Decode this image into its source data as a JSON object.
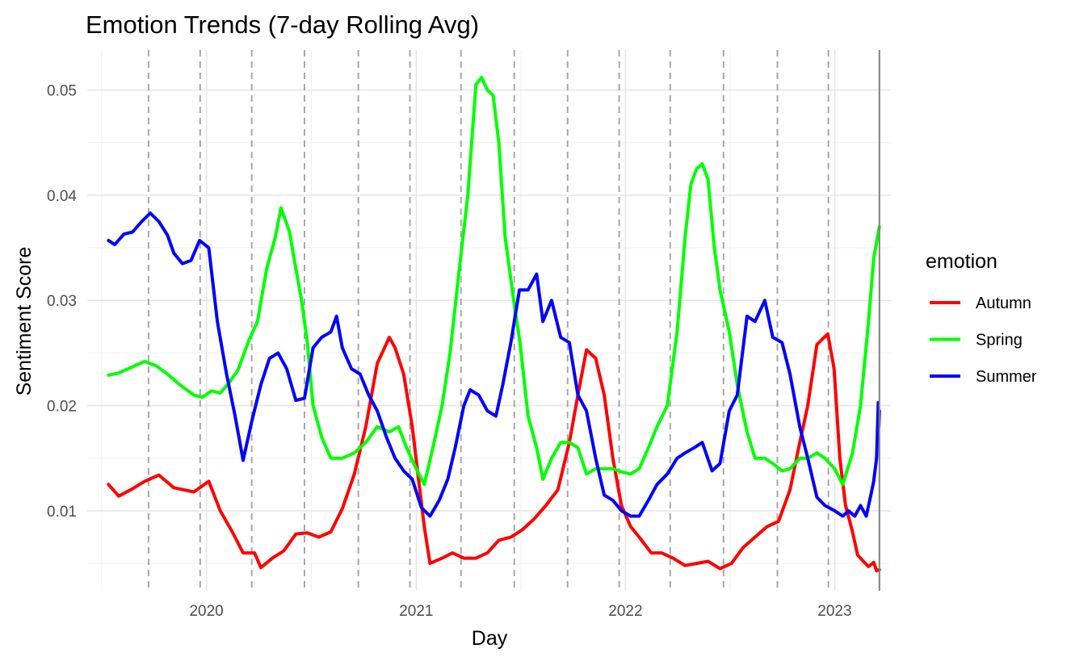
{
  "chart_data": {
    "type": "line",
    "title": "Emotion Trends (7-day Rolling Avg)",
    "xlabel": "Day",
    "ylabel": "Sentiment Score",
    "x_ticks": [
      "2020",
      "2021",
      "2022",
      "2023"
    ],
    "y_ticks": [
      "0.01",
      "0.02",
      "0.03",
      "0.04",
      "0.05"
    ],
    "ylim": [
      0.0024,
      0.0538
    ],
    "xlim": [
      "2019-06-07",
      "2023-04-09"
    ],
    "grid": true,
    "legend_title": "emotion",
    "legend_position": "right",
    "season_boundaries": [
      "2019-09-22",
      "2019-12-21",
      "2020-03-20",
      "2020-06-20",
      "2020-09-22",
      "2020-12-21",
      "2021-03-20",
      "2021-06-21",
      "2021-09-22",
      "2021-12-21",
      "2022-03-20",
      "2022-06-21",
      "2022-09-23",
      "2022-12-21"
    ],
    "end_line": "2023-03-20",
    "series": [
      {
        "name": "Autumn",
        "color": "#ff0000",
        "points": [
          [
            "2019-07-14",
            0.0125
          ],
          [
            "2019-08-01",
            0.0114
          ],
          [
            "2019-08-25",
            0.0121
          ],
          [
            "2019-09-15",
            0.0128
          ],
          [
            "2019-10-10",
            0.0134
          ],
          [
            "2019-11-05",
            0.0122
          ],
          [
            "2019-12-10",
            0.0118
          ],
          [
            "2020-01-05",
            0.0128
          ],
          [
            "2020-01-25",
            0.01
          ],
          [
            "2020-02-15",
            0.008
          ],
          [
            "2020-03-05",
            0.006
          ],
          [
            "2020-03-25",
            0.006
          ],
          [
            "2020-04-05",
            0.0046
          ],
          [
            "2020-04-25",
            0.0055
          ],
          [
            "2020-05-15",
            0.0062
          ],
          [
            "2020-06-05",
            0.0078
          ],
          [
            "2020-06-25",
            0.0079
          ],
          [
            "2020-07-15",
            0.0075
          ],
          [
            "2020-08-05",
            0.008
          ],
          [
            "2020-08-25",
            0.0102
          ],
          [
            "2020-09-15",
            0.0135
          ],
          [
            "2020-10-05",
            0.018
          ],
          [
            "2020-10-25",
            0.024
          ],
          [
            "2020-11-15",
            0.0265
          ],
          [
            "2020-11-25",
            0.0255
          ],
          [
            "2020-12-10",
            0.023
          ],
          [
            "2020-12-25",
            0.018
          ],
          [
            "2021-01-05",
            0.013
          ],
          [
            "2021-01-15",
            0.0085
          ],
          [
            "2021-01-25",
            0.005
          ],
          [
            "2021-02-15",
            0.0055
          ],
          [
            "2021-03-05",
            0.006
          ],
          [
            "2021-03-25",
            0.0055
          ],
          [
            "2021-04-15",
            0.0055
          ],
          [
            "2021-05-05",
            0.006
          ],
          [
            "2021-05-25",
            0.0072
          ],
          [
            "2021-06-15",
            0.0075
          ],
          [
            "2021-07-05",
            0.0082
          ],
          [
            "2021-07-25",
            0.0092
          ],
          [
            "2021-08-15",
            0.0105
          ],
          [
            "2021-09-05",
            0.012
          ],
          [
            "2021-09-25",
            0.0165
          ],
          [
            "2021-10-10",
            0.021
          ],
          [
            "2021-10-25",
            0.0253
          ],
          [
            "2021-11-10",
            0.0245
          ],
          [
            "2021-11-25",
            0.021
          ],
          [
            "2021-12-10",
            0.015
          ],
          [
            "2021-12-25",
            0.0105
          ],
          [
            "2022-01-10",
            0.0085
          ],
          [
            "2022-01-25",
            0.0075
          ],
          [
            "2022-02-15",
            0.006
          ],
          [
            "2022-03-05",
            0.006
          ],
          [
            "2022-03-25",
            0.0055
          ],
          [
            "2022-04-15",
            0.0048
          ],
          [
            "2022-05-05",
            0.005
          ],
          [
            "2022-05-25",
            0.0052
          ],
          [
            "2022-06-15",
            0.0045
          ],
          [
            "2022-07-05",
            0.005
          ],
          [
            "2022-07-25",
            0.0065
          ],
          [
            "2022-08-15",
            0.0075
          ],
          [
            "2022-09-05",
            0.0085
          ],
          [
            "2022-09-25",
            0.009
          ],
          [
            "2022-10-15",
            0.012
          ],
          [
            "2022-11-01",
            0.0165
          ],
          [
            "2022-11-15",
            0.02
          ],
          [
            "2022-12-01",
            0.0258
          ],
          [
            "2022-12-10",
            0.0263
          ],
          [
            "2022-12-20",
            0.0268
          ],
          [
            "2022-12-31",
            0.0235
          ],
          [
            "2023-01-10",
            0.015
          ],
          [
            "2023-01-20",
            0.0105
          ],
          [
            "2023-02-01",
            0.008
          ],
          [
            "2023-02-10",
            0.0058
          ],
          [
            "2023-02-20",
            0.0052
          ],
          [
            "2023-03-01",
            0.0047
          ],
          [
            "2023-03-10",
            0.0051
          ],
          [
            "2023-03-15",
            0.0043
          ],
          [
            "2023-03-20",
            0.0044
          ]
        ]
      },
      {
        "name": "Spring",
        "color": "#00ff00",
        "points": [
          [
            "2019-07-14",
            0.0229
          ],
          [
            "2019-08-01",
            0.0231
          ],
          [
            "2019-08-25",
            0.0237
          ],
          [
            "2019-09-15",
            0.0242
          ],
          [
            "2019-10-05",
            0.0238
          ],
          [
            "2019-10-25",
            0.023
          ],
          [
            "2019-11-15",
            0.022
          ],
          [
            "2019-12-10",
            0.021
          ],
          [
            "2019-12-25",
            0.0208
          ],
          [
            "2020-01-10",
            0.0214
          ],
          [
            "2020-01-25",
            0.0212
          ],
          [
            "2020-02-10",
            0.0222
          ],
          [
            "2020-02-25",
            0.0234
          ],
          [
            "2020-03-15",
            0.0262
          ],
          [
            "2020-03-30",
            0.028
          ],
          [
            "2020-04-15",
            0.033
          ],
          [
            "2020-04-30",
            0.036
          ],
          [
            "2020-05-10",
            0.0388
          ],
          [
            "2020-05-25",
            0.0365
          ],
          [
            "2020-06-05",
            0.033
          ],
          [
            "2020-06-15",
            0.03
          ],
          [
            "2020-06-25",
            0.026
          ],
          [
            "2020-07-05",
            0.02
          ],
          [
            "2020-07-20",
            0.017
          ],
          [
            "2020-08-05",
            0.015
          ],
          [
            "2020-08-25",
            0.015
          ],
          [
            "2020-09-15",
            0.0155
          ],
          [
            "2020-10-05",
            0.0165
          ],
          [
            "2020-10-25",
            0.018
          ],
          [
            "2020-11-15",
            0.0175
          ],
          [
            "2020-12-01",
            0.018
          ],
          [
            "2020-12-15",
            0.016
          ],
          [
            "2021-01-01",
            0.014
          ],
          [
            "2021-01-15",
            0.0125
          ],
          [
            "2021-02-01",
            0.0165
          ],
          [
            "2021-02-15",
            0.02
          ],
          [
            "2021-03-01",
            0.025
          ],
          [
            "2021-03-15",
            0.032
          ],
          [
            "2021-04-01",
            0.04
          ],
          [
            "2021-04-15",
            0.0505
          ],
          [
            "2021-04-25",
            0.0512
          ],
          [
            "2021-05-05",
            0.05
          ],
          [
            "2021-05-15",
            0.0495
          ],
          [
            "2021-05-25",
            0.045
          ],
          [
            "2021-06-05",
            0.036
          ],
          [
            "2021-06-20",
            0.03
          ],
          [
            "2021-07-01",
            0.026
          ],
          [
            "2021-07-15",
            0.019
          ],
          [
            "2021-07-30",
            0.016
          ],
          [
            "2021-08-10",
            0.013
          ],
          [
            "2021-08-25",
            0.015
          ],
          [
            "2021-09-10",
            0.0165
          ],
          [
            "2021-09-25",
            0.0165
          ],
          [
            "2021-10-10",
            0.016
          ],
          [
            "2021-10-25",
            0.0135
          ],
          [
            "2021-11-10",
            0.014
          ],
          [
            "2021-11-25",
            0.014
          ],
          [
            "2021-12-10",
            0.014
          ],
          [
            "2021-12-25",
            0.0137
          ],
          [
            "2022-01-10",
            0.0135
          ],
          [
            "2022-01-25",
            0.014
          ],
          [
            "2022-02-10",
            0.016
          ],
          [
            "2022-02-25",
            0.018
          ],
          [
            "2022-03-15",
            0.02
          ],
          [
            "2022-04-01",
            0.027
          ],
          [
            "2022-04-15",
            0.036
          ],
          [
            "2022-04-25",
            0.041
          ],
          [
            "2022-05-05",
            0.0425
          ],
          [
            "2022-05-15",
            0.043
          ],
          [
            "2022-05-25",
            0.0415
          ],
          [
            "2022-06-05",
            0.035
          ],
          [
            "2022-06-15",
            0.031
          ],
          [
            "2022-07-01",
            0.027
          ],
          [
            "2022-07-15",
            0.022
          ],
          [
            "2022-08-01",
            0.0175
          ],
          [
            "2022-08-15",
            0.015
          ],
          [
            "2022-09-01",
            0.015
          ],
          [
            "2022-09-15",
            0.0145
          ],
          [
            "2022-10-01",
            0.0138
          ],
          [
            "2022-10-15",
            0.014
          ],
          [
            "2022-11-01",
            0.015
          ],
          [
            "2022-11-15",
            0.015
          ],
          [
            "2022-12-01",
            0.0155
          ],
          [
            "2022-12-15",
            0.015
          ],
          [
            "2023-01-01",
            0.014
          ],
          [
            "2023-01-15",
            0.0125
          ],
          [
            "2023-02-01",
            0.0155
          ],
          [
            "2023-02-15",
            0.02
          ],
          [
            "2023-03-01",
            0.028
          ],
          [
            "2023-03-10",
            0.034
          ],
          [
            "2023-03-20",
            0.037
          ]
        ]
      },
      {
        "name": "Summer",
        "color": "#0000ff",
        "points": [
          [
            "2019-07-14",
            0.0357
          ],
          [
            "2019-07-25",
            0.0353
          ],
          [
            "2019-08-10",
            0.0363
          ],
          [
            "2019-08-25",
            0.0365
          ],
          [
            "2019-09-10",
            0.0375
          ],
          [
            "2019-09-25",
            0.0383
          ],
          [
            "2019-10-10",
            0.0375
          ],
          [
            "2019-10-25",
            0.0362
          ],
          [
            "2019-11-05",
            0.0345
          ],
          [
            "2019-11-20",
            0.0335
          ],
          [
            "2019-12-05",
            0.0338
          ],
          [
            "2019-12-20",
            0.0357
          ],
          [
            "2020-01-05",
            0.035
          ],
          [
            "2020-01-20",
            0.028
          ],
          [
            "2020-02-05",
            0.023
          ],
          [
            "2020-02-20",
            0.019
          ],
          [
            "2020-03-05",
            0.0148
          ],
          [
            "2020-03-20",
            0.0185
          ],
          [
            "2020-04-05",
            0.022
          ],
          [
            "2020-04-20",
            0.0245
          ],
          [
            "2020-05-05",
            0.025
          ],
          [
            "2020-05-20",
            0.0235
          ],
          [
            "2020-06-05",
            0.0205
          ],
          [
            "2020-06-20",
            0.0207
          ],
          [
            "2020-07-05",
            0.0255
          ],
          [
            "2020-07-20",
            0.0265
          ],
          [
            "2020-08-05",
            0.027
          ],
          [
            "2020-08-15",
            0.0285
          ],
          [
            "2020-08-25",
            0.0255
          ],
          [
            "2020-09-10",
            0.0235
          ],
          [
            "2020-09-25",
            0.023
          ],
          [
            "2020-10-10",
            0.021
          ],
          [
            "2020-10-25",
            0.0195
          ],
          [
            "2020-11-10",
            0.017
          ],
          [
            "2020-11-25",
            0.015
          ],
          [
            "2020-12-10",
            0.0138
          ],
          [
            "2020-12-25",
            0.013
          ],
          [
            "2021-01-10",
            0.0103
          ],
          [
            "2021-01-25",
            0.0095
          ],
          [
            "2021-02-10",
            0.011
          ],
          [
            "2021-02-25",
            0.013
          ],
          [
            "2021-03-10",
            0.016
          ],
          [
            "2021-03-25",
            0.02
          ],
          [
            "2021-04-05",
            0.0215
          ],
          [
            "2021-04-20",
            0.021
          ],
          [
            "2021-05-05",
            0.0195
          ],
          [
            "2021-05-20",
            0.019
          ],
          [
            "2021-06-01",
            0.022
          ],
          [
            "2021-06-15",
            0.026
          ],
          [
            "2021-06-30",
            0.031
          ],
          [
            "2021-07-15",
            0.031
          ],
          [
            "2021-07-30",
            0.0325
          ],
          [
            "2021-08-10",
            0.028
          ],
          [
            "2021-08-25",
            0.03
          ],
          [
            "2021-09-10",
            0.0265
          ],
          [
            "2021-09-25",
            0.026
          ],
          [
            "2021-10-10",
            0.021
          ],
          [
            "2021-10-25",
            0.0195
          ],
          [
            "2021-11-10",
            0.015
          ],
          [
            "2021-11-25",
            0.0115
          ],
          [
            "2021-12-10",
            0.011
          ],
          [
            "2021-12-25",
            0.01
          ],
          [
            "2022-01-10",
            0.0095
          ],
          [
            "2022-01-25",
            0.0095
          ],
          [
            "2022-02-10",
            0.011
          ],
          [
            "2022-02-25",
            0.0125
          ],
          [
            "2022-03-15",
            0.0135
          ],
          [
            "2022-04-01",
            0.015
          ],
          [
            "2022-04-15",
            0.0155
          ],
          [
            "2022-05-01",
            0.016
          ],
          [
            "2022-05-15",
            0.0165
          ],
          [
            "2022-06-01",
            0.0138
          ],
          [
            "2022-06-15",
            0.0145
          ],
          [
            "2022-07-01",
            0.0195
          ],
          [
            "2022-07-15",
            0.021
          ],
          [
            "2022-08-01",
            0.0285
          ],
          [
            "2022-08-15",
            0.028
          ],
          [
            "2022-09-01",
            0.03
          ],
          [
            "2022-09-15",
            0.0265
          ],
          [
            "2022-10-01",
            0.026
          ],
          [
            "2022-10-15",
            0.023
          ],
          [
            "2022-11-01",
            0.018
          ],
          [
            "2022-11-15",
            0.015
          ],
          [
            "2022-12-01",
            0.0113
          ],
          [
            "2022-12-15",
            0.0105
          ],
          [
            "2023-01-01",
            0.01
          ],
          [
            "2023-01-15",
            0.0095
          ],
          [
            "2023-01-25",
            0.01
          ],
          [
            "2023-02-05",
            0.0095
          ],
          [
            "2023-02-15",
            0.0105
          ],
          [
            "2023-02-25",
            0.0095
          ],
          [
            "2023-03-05",
            0.0115
          ],
          [
            "2023-03-10",
            0.0128
          ],
          [
            "2023-03-15",
            0.015
          ],
          [
            "2023-03-18",
            0.0203
          ],
          [
            "2023-03-19",
            0.018
          ],
          [
            "2023-03-20",
            0.0195
          ]
        ]
      }
    ]
  }
}
